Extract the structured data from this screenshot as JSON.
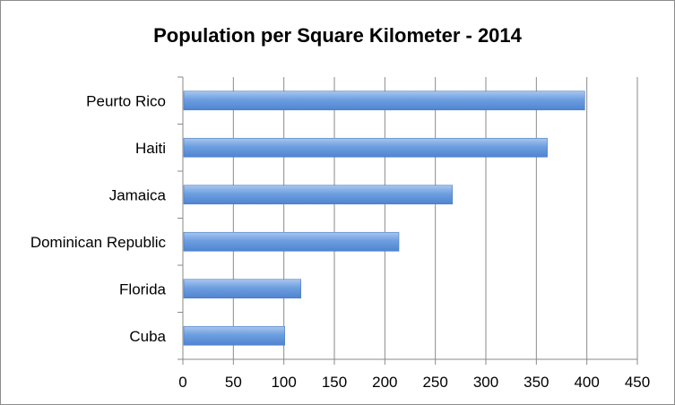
{
  "chart_data": {
    "type": "bar",
    "orientation": "horizontal",
    "title": "Population per Square Kilometer - 2014",
    "categories": [
      "Peurto Rico",
      "Haiti",
      "Jamaica",
      "Dominican Republic",
      "Florida",
      "Cuba"
    ],
    "values": [
      397,
      360,
      266,
      213,
      116,
      100
    ],
    "xlim": [
      0,
      450
    ],
    "xticks": [
      "0",
      "50",
      "100",
      "150",
      "200",
      "250",
      "300",
      "350",
      "400",
      "450"
    ],
    "grid": "vertical",
    "legend": "none",
    "bar_color": "#5b8fd6"
  }
}
